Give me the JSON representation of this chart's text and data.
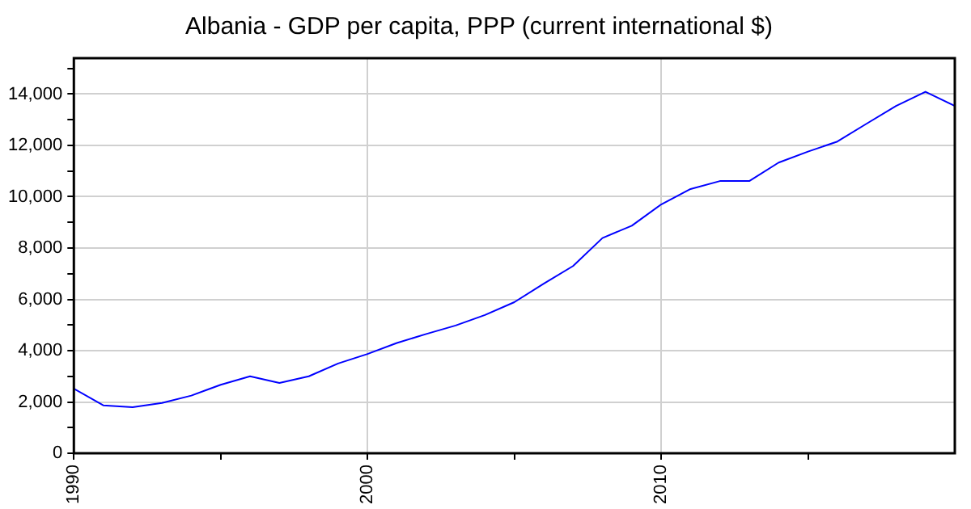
{
  "chart_data": {
    "type": "line",
    "title": "Albania - GDP per capita, PPP (current international $)",
    "x": [
      1990,
      1991,
      1992,
      1993,
      1994,
      1995,
      1996,
      1997,
      1998,
      1999,
      2000,
      2001,
      2002,
      2003,
      2004,
      2005,
      2006,
      2007,
      2008,
      2009,
      2010,
      2011,
      2012,
      2013,
      2014,
      2015,
      2016,
      2017,
      2018,
      2019,
      2020
    ],
    "series": [
      {
        "color": "#0000ff",
        "values": [
          2520,
          1870,
          1800,
          1960,
          2250,
          2670,
          3000,
          2740,
          3000,
          3500,
          3870,
          4300,
          4650,
          4980,
          5390,
          5890,
          6610,
          7300,
          8390,
          8870,
          9700,
          10300,
          10610,
          10610,
          11330,
          11760,
          12150,
          12850,
          13540,
          14090,
          13540
        ]
      }
    ],
    "xlim": [
      1990,
      2020
    ],
    "xticks": [
      1990,
      {
        "value": 1995,
        "label": null
      },
      2000,
      {
        "value": 2005,
        "label": null
      },
      2010,
      {
        "value": 2015,
        "label": null
      }
    ],
    "ylim": [
      0,
      15400
    ],
    "yticks": [
      {
        "value": 0,
        "label": "0"
      },
      {
        "value": 1000,
        "label": null
      },
      {
        "value": 2000,
        "label": "2,000"
      },
      {
        "value": 3000,
        "label": null
      },
      {
        "value": 4000,
        "label": "4,000"
      },
      {
        "value": 5000,
        "label": null
      },
      {
        "value": 6000,
        "label": "6,000"
      },
      {
        "value": 7000,
        "label": null
      },
      {
        "value": 8000,
        "label": "8,000"
      },
      {
        "value": 9000,
        "label": null
      },
      {
        "value": 10000,
        "label": "10,000"
      },
      {
        "value": 11000,
        "label": null
      },
      {
        "value": 12000,
        "label": "12,000"
      },
      {
        "value": 13000,
        "label": null
      },
      {
        "value": 14000,
        "label": "14,000"
      },
      {
        "value": 15000,
        "label": null
      }
    ],
    "grid": true,
    "legend": false,
    "marker": "none",
    "line_style": "solid"
  }
}
